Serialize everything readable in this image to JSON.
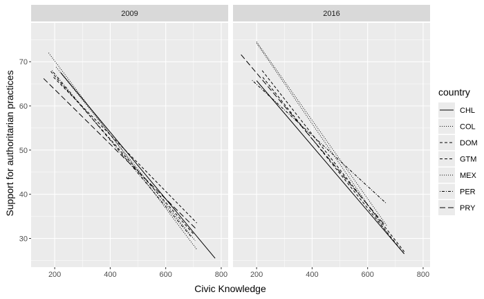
{
  "chart_data": {
    "type": "line",
    "facet_variable": "year",
    "panels": [
      {
        "label": "2009",
        "series": [
          {
            "name": "CHL",
            "x": [
              222,
              778
            ],
            "y": [
              67.5,
              25.5
            ]
          },
          {
            "name": "COL",
            "x": [
              178,
              712
            ],
            "y": [
              72.0,
              27.5
            ]
          },
          {
            "name": "DOM",
            "x": [
              196,
              712
            ],
            "y": [
              66.5,
              33.5
            ]
          },
          {
            "name": "GTM",
            "x": [
              186,
              700
            ],
            "y": [
              67.8,
              31.0
            ]
          },
          {
            "name": "MEX",
            "x": [
              205,
              706
            ],
            "y": [
              68.8,
              29.5
            ]
          },
          {
            "name": "PER",
            "x": [
              190,
              690
            ],
            "y": [
              68.0,
              30.5
            ]
          },
          {
            "name": "PRY",
            "x": [
              160,
              712
            ],
            "y": [
              66.2,
              32.0
            ]
          }
        ]
      },
      {
        "label": "2016",
        "series": [
          {
            "name": "CHL",
            "x": [
              200,
              732
            ],
            "y": [
              65.7,
              26.5
            ]
          },
          {
            "name": "COL",
            "x": [
              200,
              670
            ],
            "y": [
              74.5,
              32.8
            ]
          },
          {
            "name": "DOM",
            "x": [
              220,
              732
            ],
            "y": [
              68.0,
              27.0
            ]
          },
          {
            "name": "GTM",
            "x": [
              222,
              732
            ],
            "y": [
              66.5,
              26.5
            ]
          },
          {
            "name": "MEX",
            "x": [
              200,
              668
            ],
            "y": [
              74.2,
              31.5
            ]
          },
          {
            "name": "PER",
            "x": [
              184,
              666
            ],
            "y": [
              65.8,
              38.0
            ]
          },
          {
            "name": "PRY",
            "x": [
              144,
              665
            ],
            "y": [
              71.6,
              32.8
            ]
          }
        ]
      }
    ],
    "x_ticks": [
      200,
      400,
      600,
      800
    ],
    "y_ticks": [
      30,
      40,
      50,
      60,
      70
    ],
    "xlim": [
      115,
      825
    ],
    "ylim": [
      23.5,
      78.8
    ],
    "xlabel": "Civic Knowledge",
    "ylabel": "Support for authoritarian practices",
    "legend": {
      "title": "country",
      "position": "right",
      "entries": [
        "CHL",
        "COL",
        "DOM",
        "GTM",
        "MEX",
        "PER",
        "PRY"
      ]
    },
    "line_styles": {
      "CHL": "solid",
      "COL": "dotted",
      "DOM": "dashed",
      "GTM": "dashed",
      "MEX": "dotted",
      "PER": "dotdash",
      "PRY": "longdash"
    },
    "colors": {
      "panel_background": "#ebebeb",
      "grid_major": "#ffffff",
      "strip_background": "#d9d9d9",
      "line": "#000000"
    },
    "grid": true
  }
}
